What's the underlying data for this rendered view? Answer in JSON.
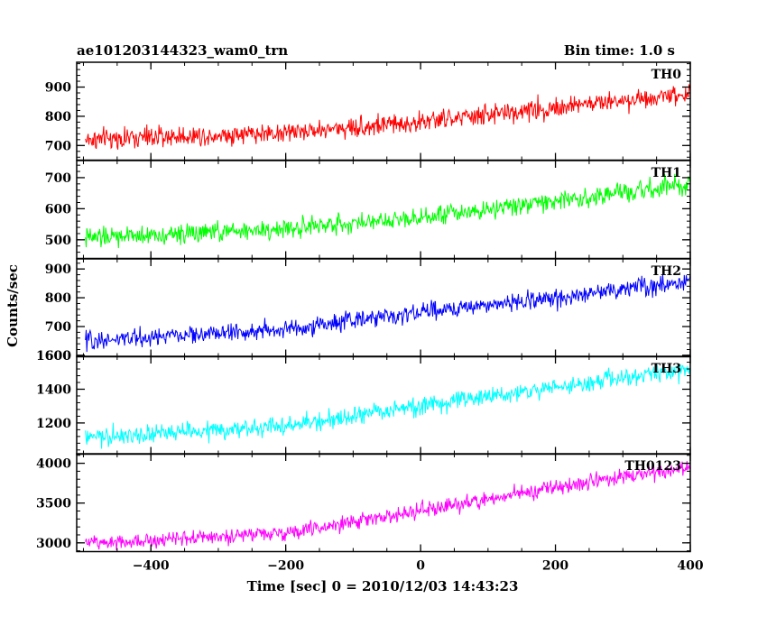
{
  "header": {
    "title": "ae101203144323_wam0_trn",
    "bin_time": "Bin time: 1.0 s"
  },
  "axes": {
    "xlabel": "Time [sec] 0 = 2010/12/03 14:43:23",
    "ylabel": "Counts/sec"
  },
  "chart_data": [
    {
      "type": "line",
      "name": "TH0",
      "color": "#ff0000",
      "xlim": [
        -510,
        400
      ],
      "ylim": [
        650,
        985
      ],
      "yticks": [
        700,
        800,
        900
      ],
      "ytick_labels": [
        "700",
        "800",
        "900"
      ],
      "xticks": [
        -400,
        -200,
        0,
        200,
        400
      ],
      "x_start": -497,
      "x_end": 400,
      "bin": 1.0,
      "trend": [
        [
          -497,
          720
        ],
        [
          -200,
          745
        ],
        [
          0,
          780
        ],
        [
          200,
          830
        ],
        [
          400,
          880
        ]
      ],
      "noise_amp": 45,
      "series": [
        {
          "name": "TH0",
          "values": []
        }
      ]
    },
    {
      "type": "line",
      "name": "TH1",
      "color": "#00ff00",
      "xlim": [
        -510,
        400
      ],
      "ylim": [
        440,
        755
      ],
      "yticks": [
        500,
        600,
        700
      ],
      "ytick_labels": [
        "500",
        "600",
        "700"
      ],
      "xticks": [
        -400,
        -200,
        0,
        200,
        400
      ],
      "x_start": -497,
      "x_end": 400,
      "bin": 1.0,
      "trend": [
        [
          -497,
          505
        ],
        [
          -200,
          535
        ],
        [
          0,
          575
        ],
        [
          200,
          625
        ],
        [
          400,
          675
        ]
      ],
      "noise_amp": 40,
      "series": [
        {
          "name": "TH1",
          "values": []
        }
      ]
    },
    {
      "type": "line",
      "name": "TH2",
      "color": "#0000ff",
      "xlim": [
        -510,
        400
      ],
      "ylim": [
        595,
        935
      ],
      "yticks": [
        600,
        700,
        800,
        900
      ],
      "ytick_labels": [
        "600",
        "700",
        "800",
        "900"
      ],
      "xticks": [
        -400,
        -200,
        0,
        200,
        400
      ],
      "x_start": -497,
      "x_end": 400,
      "bin": 1.0,
      "trend": [
        [
          -497,
          650
        ],
        [
          -200,
          690
        ],
        [
          0,
          750
        ],
        [
          200,
          800
        ],
        [
          400,
          860
        ]
      ],
      "noise_amp": 40,
      "series": [
        {
          "name": "TH2",
          "values": []
        }
      ]
    },
    {
      "type": "line",
      "name": "TH3",
      "color": "#00ffff",
      "xlim": [
        -510,
        400
      ],
      "ylim": [
        1015,
        1595
      ],
      "yticks": [
        1200,
        1400,
        1600
      ],
      "ytick_labels": [
        "1200",
        "1400",
        "1600"
      ],
      "xticks": [
        -400,
        -200,
        0,
        200,
        400
      ],
      "x_start": -497,
      "x_end": 400,
      "bin": 1.0,
      "trend": [
        [
          -497,
          1110
        ],
        [
          -200,
          1180
        ],
        [
          0,
          1300
        ],
        [
          200,
          1410
        ],
        [
          400,
          1520
        ]
      ],
      "noise_amp": 70,
      "series": [
        {
          "name": "TH3",
          "values": []
        }
      ]
    },
    {
      "type": "line",
      "name": "TH0123",
      "color": "#ff00ff",
      "xlim": [
        -510,
        400
      ],
      "ylim": [
        2890,
        4120
      ],
      "yticks": [
        3000,
        3500,
        4000
      ],
      "ytick_labels": [
        "3000",
        "3500",
        "4000"
      ],
      "xticks": [
        -400,
        -200,
        0,
        200,
        400
      ],
      "xtick_labels": [
        "−400",
        "−200",
        "0",
        "200",
        "400"
      ],
      "x_start": -497,
      "x_end": 400,
      "bin": 1.0,
      "trend": [
        [
          -497,
          3000
        ],
        [
          -200,
          3120
        ],
        [
          0,
          3400
        ],
        [
          200,
          3700
        ],
        [
          400,
          3950
        ]
      ],
      "noise_amp": 120,
      "series": [
        {
          "name": "TH0123",
          "values": []
        }
      ]
    }
  ]
}
